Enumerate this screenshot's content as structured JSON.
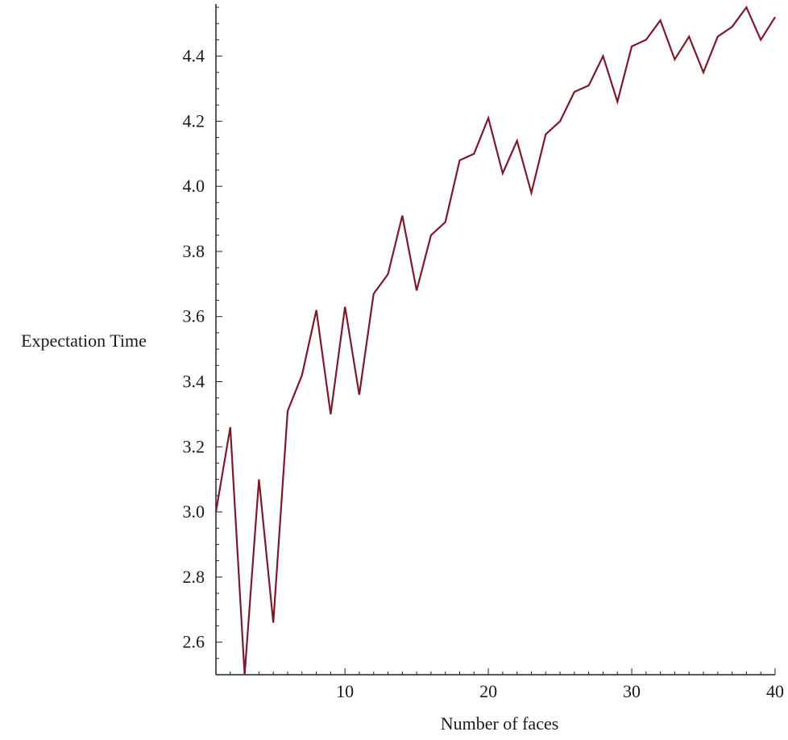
{
  "chart_data": {
    "type": "line",
    "title": "",
    "xlabel": "Number of faces",
    "ylabel": "Expectation Time",
    "xlim": [
      1,
      40
    ],
    "ylim": [
      2.5,
      4.56
    ],
    "x_ticks": [
      10,
      20,
      30,
      40
    ],
    "y_ticks": [
      2.6,
      2.8,
      3.0,
      3.2,
      3.4,
      3.6,
      3.8,
      4.0,
      4.2,
      4.4
    ],
    "y_tick_labels": [
      "2.6",
      "2.8",
      "3.0",
      "3.2",
      "3.4",
      "3.6",
      "3.8",
      "4.0",
      "4.2",
      "4.4"
    ],
    "grid": false,
    "legend": "none",
    "line_color": "#7a1a2a",
    "series": [
      {
        "x": [
          1,
          2,
          3,
          4,
          5,
          6,
          7,
          8,
          9,
          10,
          11,
          12,
          13,
          14,
          15,
          16,
          17,
          18,
          19,
          20,
          21,
          22,
          23,
          24,
          25,
          26,
          27,
          28,
          29,
          30,
          31,
          32,
          33,
          34,
          35,
          36,
          37,
          38,
          39,
          40
        ],
        "values": [
          3.0,
          3.26,
          2.5,
          3.1,
          2.66,
          3.31,
          3.42,
          3.62,
          3.3,
          3.63,
          3.36,
          3.67,
          3.73,
          3.91,
          3.68,
          3.85,
          3.89,
          4.08,
          4.1,
          4.21,
          4.04,
          4.14,
          3.98,
          4.16,
          4.2,
          4.29,
          4.31,
          4.4,
          4.26,
          4.43,
          4.45,
          4.51,
          4.39,
          4.46,
          4.35,
          4.46,
          4.49,
          4.55,
          4.45,
          4.52
        ]
      }
    ]
  }
}
